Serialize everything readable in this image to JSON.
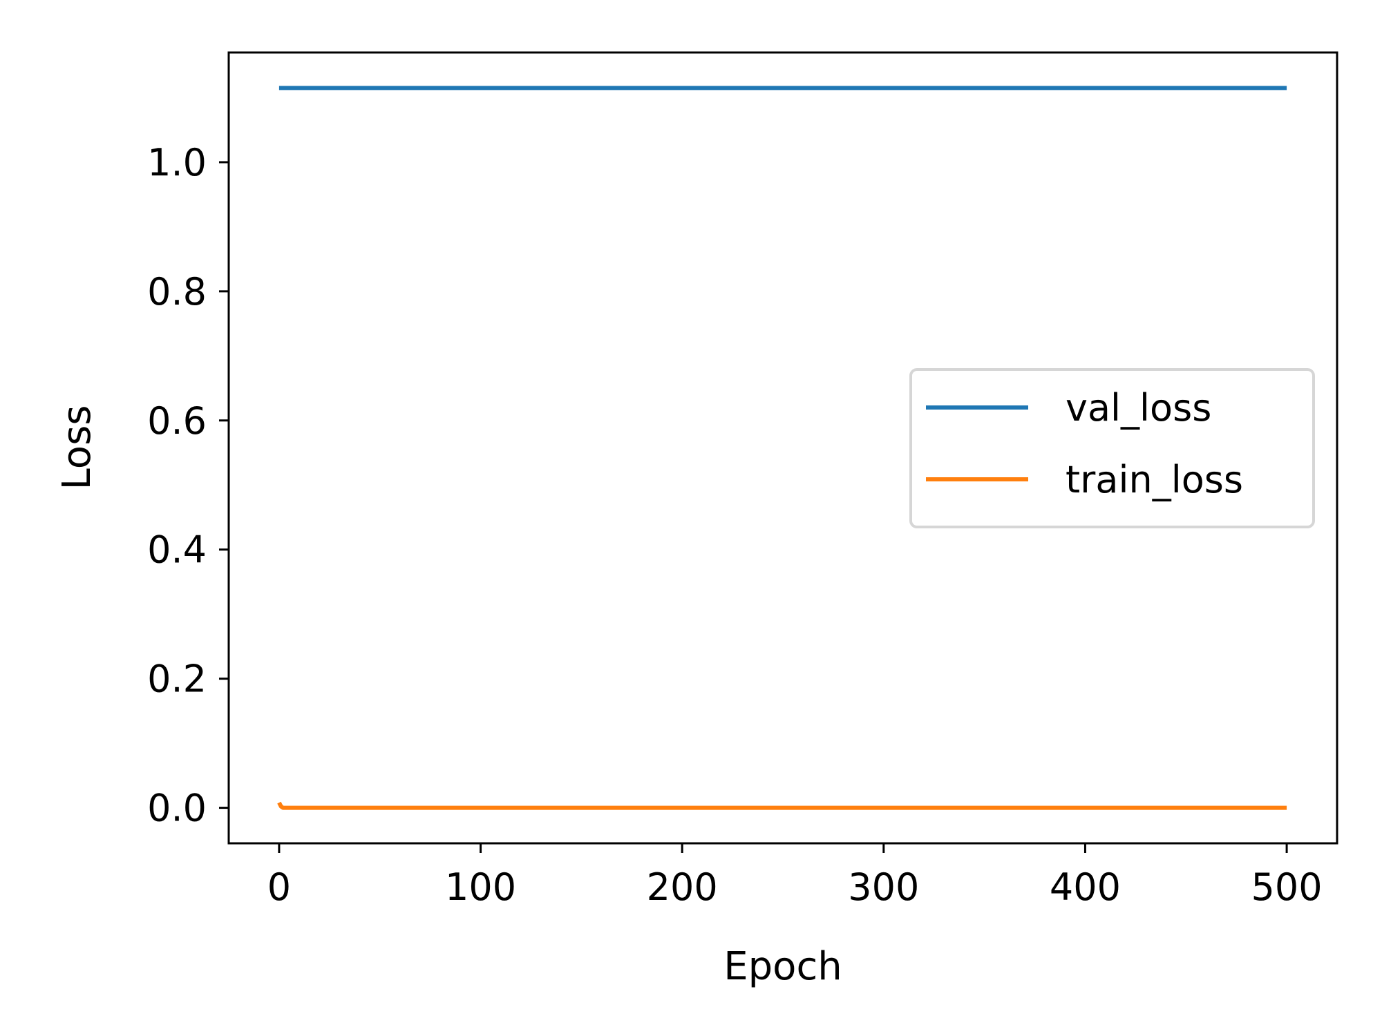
{
  "chart_data": {
    "type": "line",
    "title": "",
    "xlabel": "Epoch",
    "ylabel": "Loss",
    "xlim": [
      -25,
      525
    ],
    "ylim": [
      -0.055,
      1.17
    ],
    "xticks": [
      0,
      100,
      200,
      300,
      400,
      500
    ],
    "xtick_labels": [
      "0",
      "100",
      "200",
      "300",
      "400",
      "500"
    ],
    "yticks": [
      0.0,
      0.2,
      0.4,
      0.6,
      0.8,
      1.0
    ],
    "ytick_labels": [
      "0.0",
      "0.2",
      "0.4",
      "0.6",
      "0.8",
      "1.0"
    ],
    "grid": false,
    "legend_position": "center-right",
    "series": [
      {
        "name": "val_loss",
        "color": "#1f77b4",
        "x": [
          0,
          500
        ],
        "y": [
          1.115,
          1.115
        ]
      },
      {
        "name": "train_loss",
        "color": "#ff7f0e",
        "x": [
          0,
          1,
          2,
          500
        ],
        "y": [
          0.008,
          0.002,
          0.0,
          0.0
        ]
      }
    ]
  }
}
